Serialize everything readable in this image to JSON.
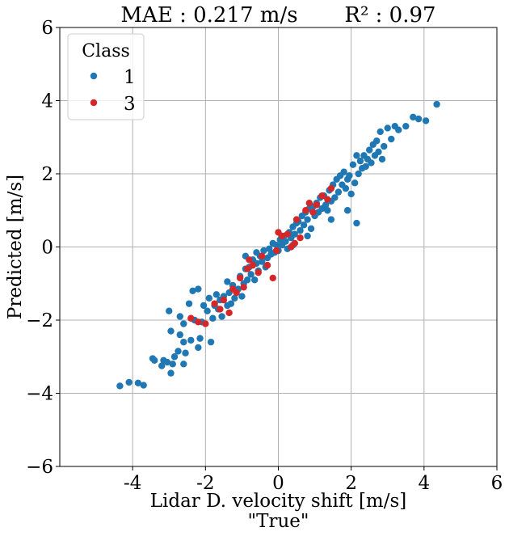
{
  "chart_data": {
    "type": "scatter",
    "title": "MAE : 0.217 m/s       R² : 0.97",
    "xlabel": "Lidar D. velocity shift [m/s]",
    "xlabel2": "\"True\"",
    "ylabel": "Predicted [m/s]",
    "xlim": [
      -6,
      6
    ],
    "ylim": [
      -6,
      6
    ],
    "xticks": [
      -4,
      -2,
      0,
      2,
      4,
      6
    ],
    "yticks": [
      -6,
      -4,
      -2,
      0,
      2,
      4,
      6
    ],
    "xtick_labels": [
      "-4",
      "-2",
      "0",
      "2",
      "4",
      "6"
    ],
    "ytick_labels": [
      "−6",
      "−4",
      "−2",
      "0",
      "2",
      "4",
      "6"
    ],
    "grid": true,
    "legend": {
      "title": "Class",
      "placement": "top-left",
      "entries": [
        {
          "label": "1",
          "color": "#1f77b4"
        },
        {
          "label": "3",
          "color": "#d62728"
        }
      ]
    },
    "series": [
      {
        "name": "1",
        "color": "#1f77b4",
        "points": [
          [
            -4.35,
            -3.8
          ],
          [
            -4.1,
            -3.7
          ],
          [
            -3.85,
            -3.72
          ],
          [
            -3.7,
            -3.78
          ],
          [
            -3.45,
            -3.05
          ],
          [
            -3.4,
            -3.1
          ],
          [
            -3.2,
            -3.25
          ],
          [
            -3.15,
            -3.1
          ],
          [
            -3.05,
            -3.15
          ],
          [
            -2.95,
            -3.45
          ],
          [
            -2.9,
            -3.2
          ],
          [
            -2.85,
            -3.0
          ],
          [
            -2.75,
            -2.85
          ],
          [
            -2.6,
            -2.6
          ],
          [
            -2.7,
            -2.4
          ],
          [
            -2.55,
            -2.9
          ],
          [
            -2.6,
            -2.1
          ],
          [
            -2.45,
            -1.55
          ],
          [
            -2.35,
            -1.2
          ],
          [
            -2.2,
            -1.15
          ],
          [
            -2.3,
            -2.0
          ],
          [
            -2.15,
            -2.5
          ],
          [
            -2.2,
            -2.75
          ],
          [
            -2.05,
            -1.6
          ],
          [
            -2.1,
            -2.05
          ],
          [
            -1.95,
            -1.75
          ],
          [
            -1.9,
            -1.4
          ],
          [
            -1.85,
            -2.6
          ],
          [
            -1.8,
            -1.95
          ],
          [
            -1.75,
            -1.6
          ],
          [
            -1.65,
            -1.7
          ],
          [
            -1.6,
            -1.45
          ],
          [
            -1.55,
            -1.9
          ],
          [
            -1.5,
            -1.35
          ],
          [
            -1.4,
            -1.6
          ],
          [
            -1.35,
            -1.25
          ],
          [
            -1.3,
            -1.55
          ],
          [
            -1.25,
            -1.05
          ],
          [
            -1.2,
            -1.4
          ],
          [
            -1.1,
            -1.15
          ],
          [
            -1.05,
            -0.8
          ],
          [
            -1.0,
            -1.35
          ],
          [
            -0.95,
            -1.0
          ],
          [
            -0.9,
            -0.6
          ],
          [
            -0.85,
            -0.9
          ],
          [
            -0.8,
            -0.55
          ],
          [
            -0.75,
            -0.75
          ],
          [
            -0.7,
            -0.35
          ],
          [
            -0.65,
            -0.9
          ],
          [
            -0.6,
            -0.45
          ],
          [
            -0.55,
            -0.65
          ],
          [
            -0.5,
            -0.25
          ],
          [
            -0.45,
            -0.4
          ],
          [
            -0.4,
            -0.1
          ],
          [
            -0.35,
            -0.55
          ],
          [
            -0.3,
            -0.3
          ],
          [
            -0.25,
            -0.05
          ],
          [
            -0.2,
            -0.2
          ],
          [
            -0.15,
            0.1
          ],
          [
            -0.1,
            -0.15
          ],
          [
            -0.05,
            0.05
          ],
          [
            0.0,
            -0.1
          ],
          [
            0.05,
            0.2
          ],
          [
            0.1,
            0.05
          ],
          [
            0.15,
            0.3
          ],
          [
            0.2,
            0.15
          ],
          [
            0.25,
            -0.05
          ],
          [
            0.3,
            0.4
          ],
          [
            0.35,
            0.25
          ],
          [
            0.4,
            0.55
          ],
          [
            0.45,
            0.35
          ],
          [
            0.5,
            0.65
          ],
          [
            0.55,
            0.7
          ],
          [
            0.6,
            0.45
          ],
          [
            0.65,
            0.85
          ],
          [
            0.7,
            0.6
          ],
          [
            0.75,
            0.95
          ],
          [
            0.8,
            0.75
          ],
          [
            0.85,
            1.05
          ],
          [
            0.9,
            0.5
          ],
          [
            0.95,
            1.1
          ],
          [
            1.0,
            0.85
          ],
          [
            1.05,
            1.2
          ],
          [
            1.1,
            0.95
          ],
          [
            1.15,
            1.35
          ],
          [
            1.2,
            1.05
          ],
          [
            1.25,
            1.4
          ],
          [
            1.3,
            1.15
          ],
          [
            1.35,
            1.0
          ],
          [
            1.4,
            1.55
          ],
          [
            1.45,
            1.25
          ],
          [
            1.5,
            1.7
          ],
          [
            1.55,
            1.35
          ],
          [
            1.6,
            1.85
          ],
          [
            1.65,
            1.5
          ],
          [
            1.7,
            1.95
          ],
          [
            1.75,
            1.7
          ],
          [
            1.8,
            2.05
          ],
          [
            1.85,
            1.6
          ],
          [
            1.9,
            1.85
          ],
          [
            1.95,
            1.95
          ],
          [
            2.0,
            1.45
          ],
          [
            2.05,
            2.25
          ],
          [
            2.1,
            1.75
          ],
          [
            2.15,
            2.5
          ],
          [
            2.2,
            2.0
          ],
          [
            2.25,
            2.35
          ],
          [
            2.3,
            2.15
          ],
          [
            2.35,
            2.5
          ],
          [
            2.4,
            2.2
          ],
          [
            2.45,
            2.4
          ],
          [
            2.5,
            2.65
          ],
          [
            2.55,
            2.3
          ],
          [
            2.6,
            2.8
          ],
          [
            2.65,
            2.5
          ],
          [
            2.7,
            2.9
          ],
          [
            2.75,
            2.6
          ],
          [
            2.8,
            3.15
          ],
          [
            2.9,
            2.75
          ],
          [
            3.0,
            3.25
          ],
          [
            3.1,
            2.95
          ],
          [
            3.2,
            3.3
          ],
          [
            3.3,
            3.2
          ],
          [
            3.5,
            3.3
          ],
          [
            3.7,
            3.55
          ],
          [
            3.85,
            3.5
          ],
          [
            4.05,
            3.45
          ],
          [
            4.35,
            3.9
          ],
          [
            2.15,
            0.65
          ],
          [
            1.9,
            1.0
          ],
          [
            -2.7,
            -1.9
          ],
          [
            -2.95,
            -2.3
          ],
          [
            -2.6,
            -3.2
          ],
          [
            -1.4,
            -0.95
          ],
          [
            -0.9,
            -0.25
          ],
          [
            0.8,
            0.3
          ],
          [
            1.45,
            0.75
          ],
          [
            2.85,
            2.4
          ],
          [
            -3.0,
            -1.75
          ],
          [
            -2.4,
            -2.55
          ],
          [
            -1.7,
            -1.3
          ],
          [
            -0.6,
            -0.15
          ],
          [
            0.4,
            0.05
          ]
        ]
      },
      {
        "name": "3",
        "color": "#d62728",
        "points": [
          [
            -2.2,
            -2.05
          ],
          [
            -2.0,
            -2.1
          ],
          [
            -1.75,
            -1.55
          ],
          [
            -1.5,
            -1.45
          ],
          [
            -1.35,
            -1.8
          ],
          [
            -1.25,
            -1.15
          ],
          [
            -1.15,
            -1.25
          ],
          [
            -1.05,
            -0.85
          ],
          [
            -0.95,
            -1.1
          ],
          [
            -0.85,
            -0.6
          ],
          [
            -0.7,
            -0.5
          ],
          [
            -0.55,
            -0.7
          ],
          [
            -0.45,
            -0.25
          ],
          [
            -0.3,
            -0.5
          ],
          [
            -0.15,
            -0.85
          ],
          [
            -0.05,
            -0.1
          ],
          [
            0.0,
            0.4
          ],
          [
            0.1,
            0.3
          ],
          [
            0.25,
            0.35
          ],
          [
            0.35,
            0.0
          ],
          [
            0.45,
            0.1
          ],
          [
            0.6,
            0.25
          ],
          [
            0.75,
            1.0
          ],
          [
            0.85,
            1.2
          ],
          [
            0.95,
            0.95
          ],
          [
            1.05,
            1.15
          ],
          [
            1.2,
            1.4
          ],
          [
            1.35,
            1.3
          ],
          [
            1.45,
            1.6
          ],
          [
            -2.4,
            -1.95
          ],
          [
            -1.6,
            -1.7
          ],
          [
            -0.8,
            -0.35
          ],
          [
            0.5,
            0.75
          ]
        ]
      }
    ]
  }
}
